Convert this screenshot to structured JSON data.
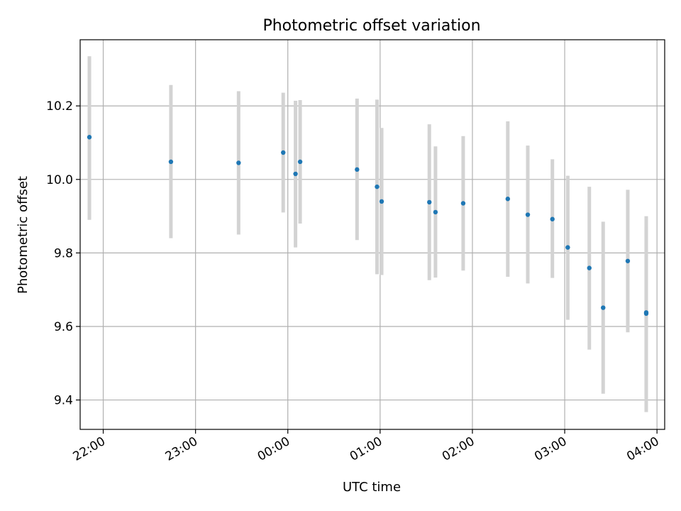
{
  "chart_data": {
    "type": "scatter",
    "title": "Photometric offset variation",
    "xlabel": "UTC time",
    "ylabel": "Photometric offset",
    "x_scale": "time",
    "xlim": [
      "21:45",
      "04:05"
    ],
    "ylim": [
      9.32,
      10.38
    ],
    "x_ticks": [
      "22:00",
      "23:00",
      "00:00",
      "01:00",
      "02:00",
      "03:00",
      "04:00"
    ],
    "y_ticks": [
      9.4,
      9.6,
      9.8,
      10.0,
      10.2
    ],
    "y_tick_labels": [
      "9.4",
      "9.6",
      "9.8",
      "10.0",
      "10.2"
    ],
    "grid": true,
    "legend": "none",
    "colors": {
      "point": "#1f77b4",
      "errorbar": "#d3d3d3",
      "grid": "#b0b0b0"
    },
    "points": [
      {
        "x": "21:51",
        "y": 10.115,
        "ylow": 9.89,
        "yhigh": 10.335
      },
      {
        "x": "22:44",
        "y": 10.048,
        "ylow": 9.84,
        "yhigh": 10.257
      },
      {
        "x": "23:28",
        "y": 10.045,
        "ylow": 9.85,
        "yhigh": 10.24
      },
      {
        "x": "23:57",
        "y": 10.073,
        "ylow": 9.91,
        "yhigh": 10.236
      },
      {
        "x": "00:05",
        "y": 10.015,
        "ylow": 9.815,
        "yhigh": 10.214
      },
      {
        "x": "00:08",
        "y": 10.048,
        "ylow": 9.88,
        "yhigh": 10.216
      },
      {
        "x": "00:45",
        "y": 10.027,
        "ylow": 9.835,
        "yhigh": 10.22
      },
      {
        "x": "00:58",
        "y": 9.98,
        "ylow": 9.742,
        "yhigh": 10.217
      },
      {
        "x": "01:01",
        "y": 9.94,
        "ylow": 9.74,
        "yhigh": 10.14
      },
      {
        "x": "01:32",
        "y": 9.938,
        "ylow": 9.726,
        "yhigh": 10.15
      },
      {
        "x": "01:36",
        "y": 9.911,
        "ylow": 9.733,
        "yhigh": 10.09
      },
      {
        "x": "01:54",
        "y": 9.935,
        "ylow": 9.752,
        "yhigh": 10.118
      },
      {
        "x": "02:23",
        "y": 9.947,
        "ylow": 9.735,
        "yhigh": 10.158
      },
      {
        "x": "02:36",
        "y": 9.904,
        "ylow": 9.717,
        "yhigh": 10.092
      },
      {
        "x": "02:52",
        "y": 9.892,
        "ylow": 9.732,
        "yhigh": 10.055
      },
      {
        "x": "03:02",
        "y": 9.815,
        "ylow": 9.618,
        "yhigh": 10.01
      },
      {
        "x": "03:16",
        "y": 9.759,
        "ylow": 9.537,
        "yhigh": 9.98
      },
      {
        "x": "03:25",
        "y": 9.651,
        "ylow": 9.417,
        "yhigh": 9.885
      },
      {
        "x": "03:41",
        "y": 9.778,
        "ylow": 9.584,
        "yhigh": 9.972
      },
      {
        "x": "03:53",
        "y": 9.638,
        "ylow": 9.367,
        "yhigh": 9.9
      },
      {
        "x": "03:53",
        "y": 9.635,
        "ylow": 9.41,
        "yhigh": 9.87
      }
    ]
  }
}
